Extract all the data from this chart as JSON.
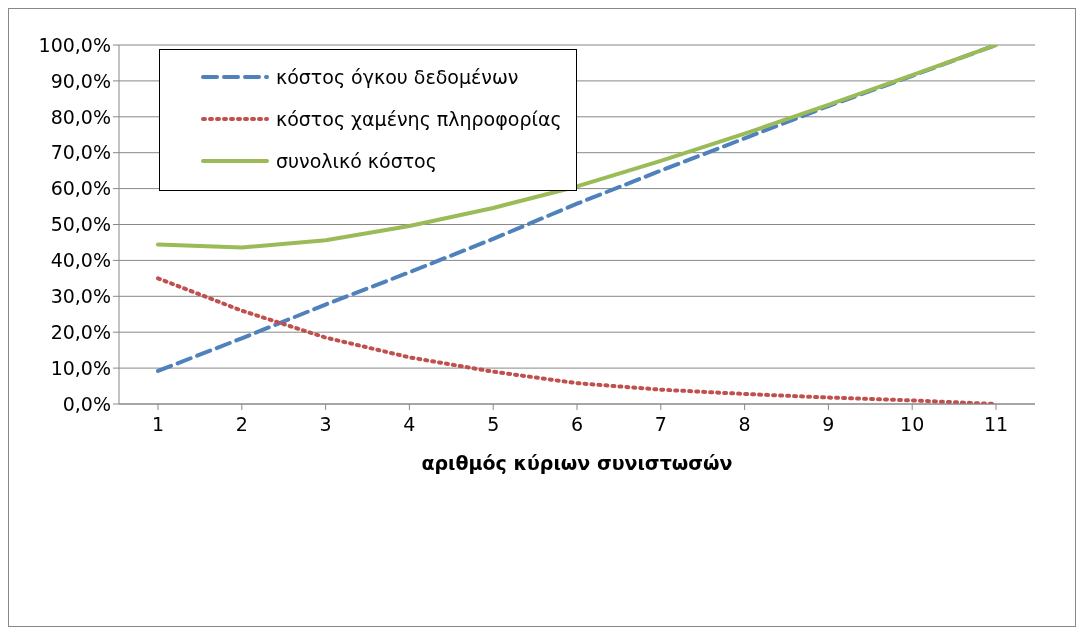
{
  "chart_data": {
    "type": "line",
    "xlabel": "αριθμός κύριων  συνιστωσών",
    "categories": [
      "1",
      "2",
      "3",
      "4",
      "5",
      "6",
      "7",
      "8",
      "9",
      "10",
      "11"
    ],
    "series": [
      {
        "name": "κόστος όγκου δεδομένων",
        "color": "#4f81bd",
        "line_style": "dashed",
        "values": [
          9.2,
          18.3,
          27.7,
          36.7,
          46,
          55.8,
          65,
          74,
          83,
          91.4,
          100
        ]
      },
      {
        "name": "κόστος χαμένης πληροφορίας",
        "color": "#c0504d",
        "line_style": "dotted",
        "values": [
          35,
          26,
          18.5,
          13,
          9,
          5.8,
          4,
          2.8,
          1.8,
          1,
          0
        ]
      },
      {
        "name": "συνολικό κόστος",
        "color": "#9bbb59",
        "line_style": "solid",
        "values": [
          44.4,
          43.6,
          45.6,
          49.6,
          54.6,
          60.6,
          67.7,
          75.3,
          83.3,
          91.6,
          100
        ]
      }
    ],
    "ylim": [
      0,
      100
    ],
    "yticks": [
      {
        "value": 0,
        "label": "0,0%"
      },
      {
        "value": 10,
        "label": "10,0%"
      },
      {
        "value": 20,
        "label": "20,0%"
      },
      {
        "value": 30,
        "label": "30,0%"
      },
      {
        "value": 40,
        "label": "40,0%"
      },
      {
        "value": 50,
        "label": "50,0%"
      },
      {
        "value": 60,
        "label": "60,0%"
      },
      {
        "value": 70,
        "label": "70,0%"
      },
      {
        "value": 80,
        "label": "80,0%"
      },
      {
        "value": 90,
        "label": "90,0%"
      },
      {
        "value": 100,
        "label": "100,0%"
      }
    ],
    "grid": "y",
    "legend": "top left",
    "marker": "none"
  }
}
